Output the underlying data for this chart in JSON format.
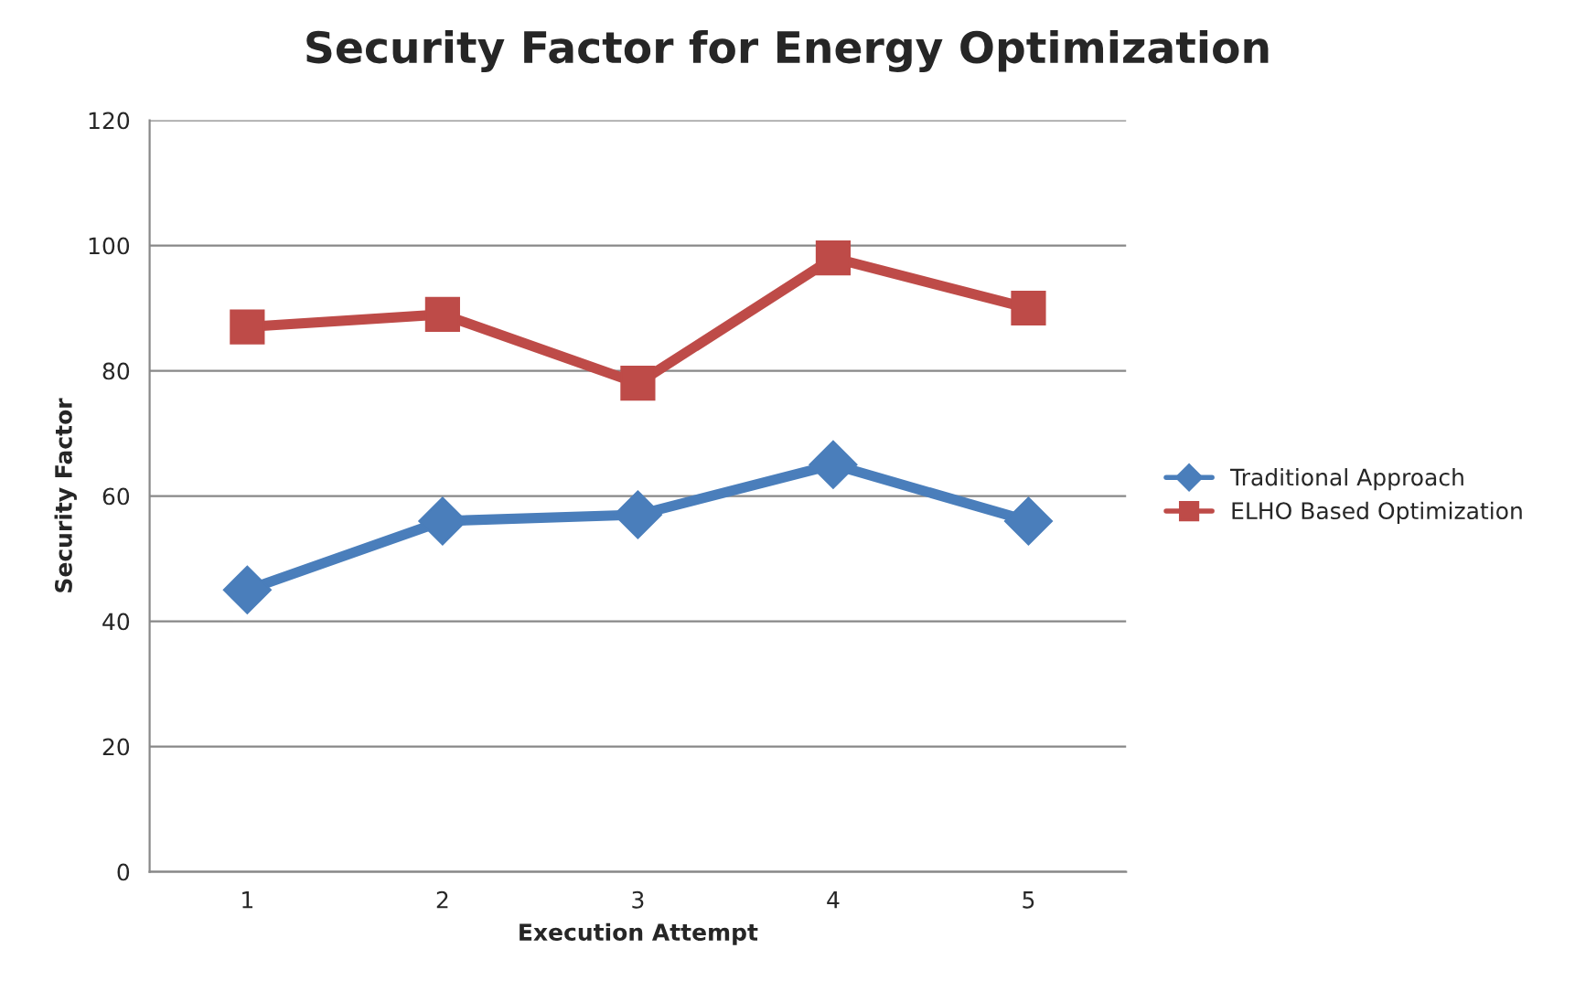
{
  "chart_data": {
    "type": "line",
    "title": "Security Factor for Energy Optimization",
    "xlabel": "Execution Attempt",
    "ylabel": "Security Factor",
    "categories": [
      "1",
      "2",
      "3",
      "4",
      "5"
    ],
    "series": [
      {
        "name": "Traditional Approach",
        "color": "#4a7ebb",
        "marker": "diamond",
        "values": [
          45,
          56,
          57,
          65,
          56
        ]
      },
      {
        "name": "ELHO Based Optimization",
        "color": "#be4b48",
        "marker": "square",
        "values": [
          87,
          89,
          78,
          98,
          90
        ]
      }
    ],
    "ylim": [
      0,
      120
    ],
    "yticks": [
      0,
      20,
      40,
      60,
      80,
      100,
      120
    ],
    "grid": "y",
    "legend": "right",
    "line_style": "solid"
  }
}
